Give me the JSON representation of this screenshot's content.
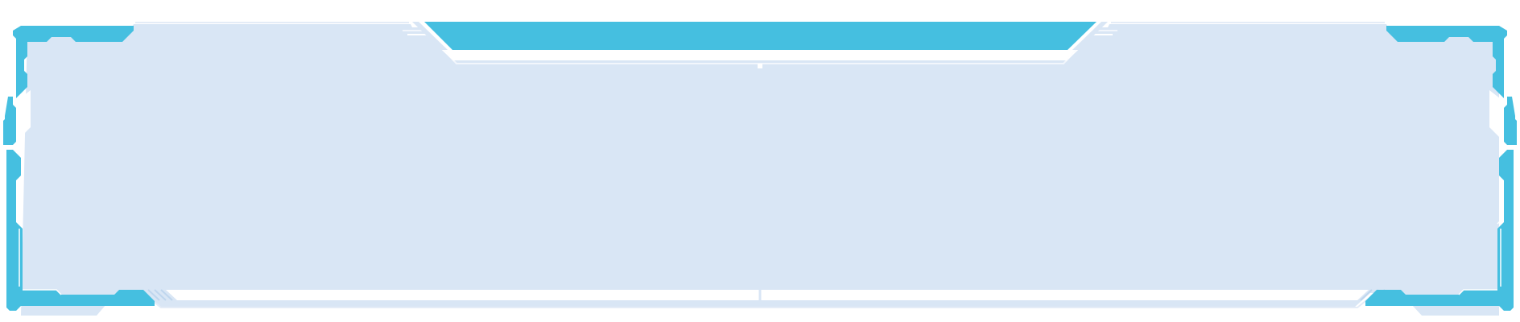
{
  "colors": {
    "background": "#ffffff",
    "panel_fill": "#d9e6f5",
    "accent": "#45bfe0",
    "outline": "#e4ecf7",
    "notch_light": "#bfd6ee"
  },
  "icons": {
    "corner_bracket_left": "hud-corner-bracket-icon",
    "corner_bracket_right": "hud-corner-bracket-icon",
    "top_tab": "hud-top-tab-icon"
  }
}
